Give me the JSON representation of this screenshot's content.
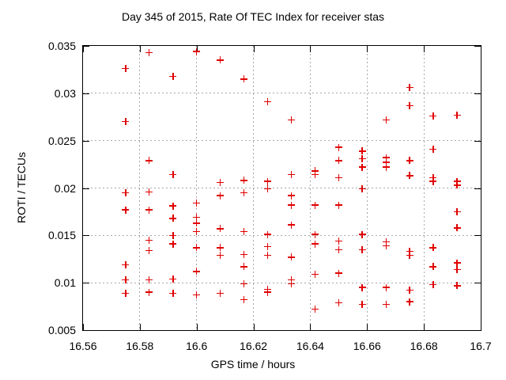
{
  "title": "Day 345 of 2015, Rate Of TEC Index for receiver stas",
  "colors": {
    "marker": "#e00000",
    "grid": "#a8a8a8",
    "axis": "#000000",
    "background": "#ffffff"
  },
  "chart_data": {
    "type": "scatter",
    "title": "Day 345 of 2015, Rate Of TEC Index for receiver stas",
    "xlabel": "GPS time / hours",
    "ylabel": "ROTI / TECUs",
    "xlim": [
      16.56,
      16.7
    ],
    "ylim": [
      0.005,
      0.035
    ],
    "grid": true,
    "legend": "none",
    "marker": "plus",
    "x_ticks": [
      16.56,
      16.58,
      16.6,
      16.62,
      16.64,
      16.66,
      16.68,
      16.7
    ],
    "x_tick_labels": [
      "16.56",
      "16.58",
      "16.6",
      "16.62",
      "16.64",
      "16.66",
      "16.68",
      "16.7"
    ],
    "y_ticks": [
      0.005,
      0.01,
      0.015,
      0.02,
      0.025,
      0.03,
      0.035
    ],
    "y_tick_labels": [
      "0.005",
      "0.01",
      "0.015",
      "0.02",
      "0.025",
      "0.03",
      "0.035"
    ],
    "series": [
      {
        "name": "ROTI",
        "points": [
          [
            16.575,
            0.0326
          ],
          [
            16.575,
            0.027
          ],
          [
            16.575,
            0.0195
          ],
          [
            16.575,
            0.0177
          ],
          [
            16.575,
            0.0119
          ],
          [
            16.575,
            0.0103
          ],
          [
            16.575,
            0.0089
          ],
          [
            16.5833,
            0.0343
          ],
          [
            16.5833,
            0.0229
          ],
          [
            16.5833,
            0.0196
          ],
          [
            16.5833,
            0.0177
          ],
          [
            16.5833,
            0.0145
          ],
          [
            16.5833,
            0.0134
          ],
          [
            16.5833,
            0.0103
          ],
          [
            16.5833,
            0.009
          ],
          [
            16.5917,
            0.0318
          ],
          [
            16.5917,
            0.0214
          ],
          [
            16.5917,
            0.0181
          ],
          [
            16.5917,
            0.0168
          ],
          [
            16.5917,
            0.015
          ],
          [
            16.5917,
            0.0141
          ],
          [
            16.5917,
            0.0104
          ],
          [
            16.5917,
            0.0089
          ],
          [
            16.6,
            0.0344
          ],
          [
            16.6,
            0.0184
          ],
          [
            16.6,
            0.0169
          ],
          [
            16.6,
            0.0163
          ],
          [
            16.6,
            0.0154
          ],
          [
            16.6,
            0.0137
          ],
          [
            16.6,
            0.0112
          ],
          [
            16.6,
            0.0087
          ],
          [
            16.6083,
            0.0335
          ],
          [
            16.6083,
            0.0206
          ],
          [
            16.6083,
            0.0192
          ],
          [
            16.6083,
            0.0157
          ],
          [
            16.6083,
            0.0137
          ],
          [
            16.6083,
            0.0129
          ],
          [
            16.6083,
            0.0089
          ],
          [
            16.6167,
            0.0315
          ],
          [
            16.6167,
            0.0208
          ],
          [
            16.6167,
            0.0195
          ],
          [
            16.6167,
            0.0154
          ],
          [
            16.6167,
            0.013
          ],
          [
            16.6167,
            0.0117
          ],
          [
            16.6167,
            0.0099
          ],
          [
            16.6167,
            0.0082
          ],
          [
            16.625,
            0.0291
          ],
          [
            16.625,
            0.0207
          ],
          [
            16.625,
            0.0199
          ],
          [
            16.625,
            0.0151
          ],
          [
            16.625,
            0.0138
          ],
          [
            16.625,
            0.0129
          ],
          [
            16.625,
            0.0093
          ],
          [
            16.625,
            0.009
          ],
          [
            16.6333,
            0.0272
          ],
          [
            16.6333,
            0.0214
          ],
          [
            16.6333,
            0.0192
          ],
          [
            16.6333,
            0.0182
          ],
          [
            16.6333,
            0.0161
          ],
          [
            16.6333,
            0.0127
          ],
          [
            16.6333,
            0.0103
          ],
          [
            16.6333,
            0.0099
          ],
          [
            16.6417,
            0.0218
          ],
          [
            16.6417,
            0.0214
          ],
          [
            16.6417,
            0.0182
          ],
          [
            16.6417,
            0.0151
          ],
          [
            16.6417,
            0.0141
          ],
          [
            16.6417,
            0.0109
          ],
          [
            16.6417,
            0.0072
          ],
          [
            16.65,
            0.0243
          ],
          [
            16.65,
            0.0229
          ],
          [
            16.65,
            0.0211
          ],
          [
            16.65,
            0.0182
          ],
          [
            16.65,
            0.0144
          ],
          [
            16.65,
            0.0135
          ],
          [
            16.65,
            0.011
          ],
          [
            16.65,
            0.0079
          ],
          [
            16.6583,
            0.0239
          ],
          [
            16.6583,
            0.0231
          ],
          [
            16.6583,
            0.0222
          ],
          [
            16.6583,
            0.0199
          ],
          [
            16.6583,
            0.0151
          ],
          [
            16.6583,
            0.0135
          ],
          [
            16.6583,
            0.0095
          ],
          [
            16.6583,
            0.0077
          ],
          [
            16.6667,
            0.0272
          ],
          [
            16.6667,
            0.0232
          ],
          [
            16.6667,
            0.0227
          ],
          [
            16.6667,
            0.0222
          ],
          [
            16.6667,
            0.0143
          ],
          [
            16.6667,
            0.0139
          ],
          [
            16.6667,
            0.0095
          ],
          [
            16.6667,
            0.0077
          ],
          [
            16.675,
            0.0306
          ],
          [
            16.675,
            0.0287
          ],
          [
            16.675,
            0.0229
          ],
          [
            16.675,
            0.0213
          ],
          [
            16.675,
            0.0133
          ],
          [
            16.675,
            0.0129
          ],
          [
            16.675,
            0.0092
          ],
          [
            16.675,
            0.008
          ],
          [
            16.6833,
            0.0276
          ],
          [
            16.6833,
            0.0241
          ],
          [
            16.6833,
            0.0211
          ],
          [
            16.6833,
            0.0207
          ],
          [
            16.6833,
            0.0137
          ],
          [
            16.6833,
            0.0117
          ],
          [
            16.6833,
            0.0098
          ],
          [
            16.6917,
            0.0277
          ],
          [
            16.6917,
            0.0207
          ],
          [
            16.6917,
            0.0203
          ],
          [
            16.6917,
            0.0175
          ],
          [
            16.6917,
            0.0158
          ],
          [
            16.6917,
            0.0121
          ],
          [
            16.6917,
            0.0114
          ],
          [
            16.6917,
            0.0097
          ]
        ]
      }
    ]
  }
}
